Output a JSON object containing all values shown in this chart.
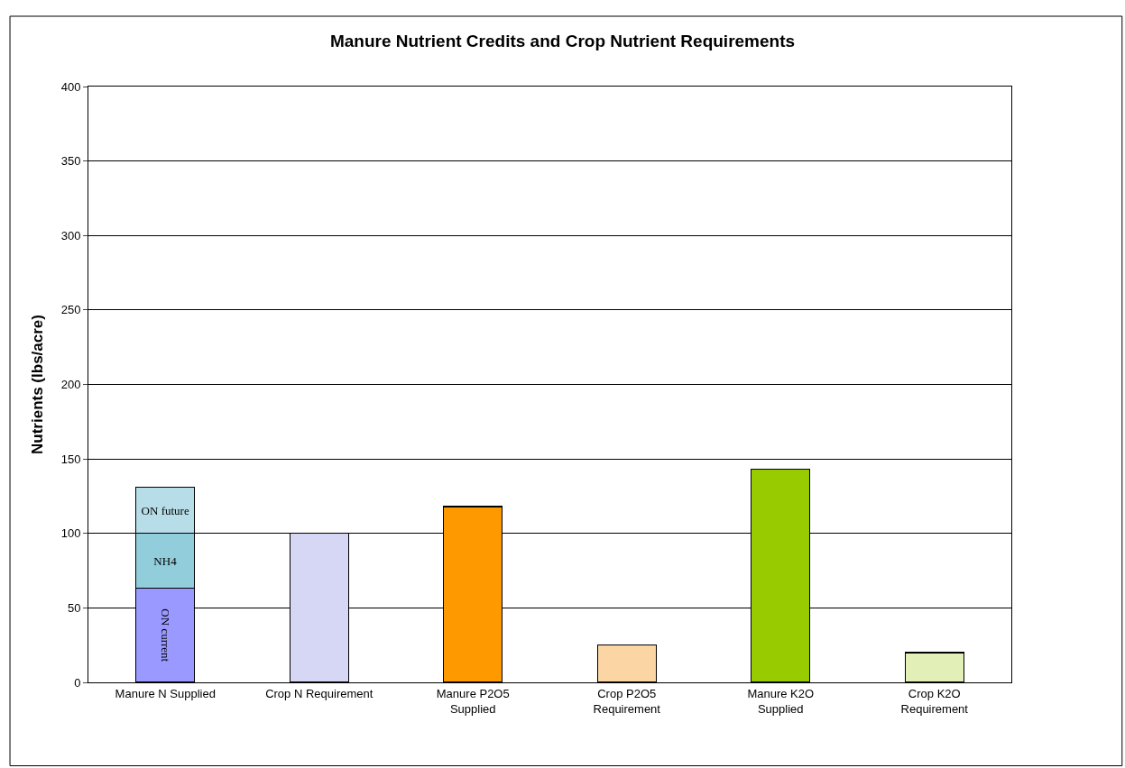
{
  "chart_data": {
    "type": "bar",
    "title": "Manure Nutrient Credits and Crop Nutrient Requirements",
    "ylabel": "Nutrients (lbs/acre)",
    "categories": [
      "Manure N Supplied",
      "Crop N Requirement",
      "Manure P2O5 Supplied",
      "Crop P2O5 Requirement",
      "Manure K2O Supplied",
      "Crop K2O Requirement"
    ],
    "stacked": true,
    "series": [
      {
        "name": "ON current",
        "color": "#9999ff",
        "values": [
          63,
          null,
          null,
          null,
          null,
          null
        ]
      },
      {
        "name": "NH4",
        "color": "#92cddc",
        "values": [
          37,
          null,
          null,
          null,
          null,
          null
        ]
      },
      {
        "name": "ON future",
        "color": "#b7dde8",
        "values": [
          31,
          null,
          null,
          null,
          null,
          null
        ]
      },
      {
        "colors": [
          "#ffffff",
          "#d6d6f5",
          "#ff9900",
          "#fcd5a5",
          "#99cc00",
          "#e2f0b8"
        ],
        "values": [
          null,
          100,
          118,
          25,
          143,
          20
        ]
      }
    ],
    "ylim": [
      0,
      400
    ],
    "yticks": [
      0,
      50,
      100,
      150,
      200,
      250,
      300,
      350,
      400
    ],
    "grid": "y",
    "legend": false
  }
}
